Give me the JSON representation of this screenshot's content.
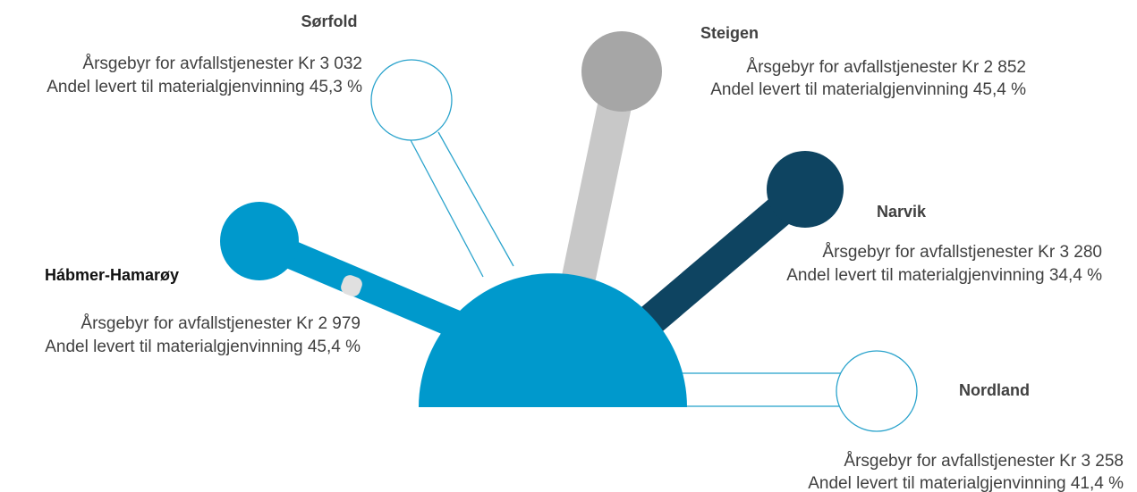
{
  "items": [
    {
      "name": "Sørfold",
      "fee": "Årsgebyr for avfallstjenester Kr 3 032",
      "share": "Andel levert til materialgjenvinning 45,3 %"
    },
    {
      "name": "Steigen",
      "fee": "Årsgebyr for avfallstjenester Kr 2 852",
      "share": "Andel levert til materialgjenvinning 45,4 %"
    },
    {
      "name": "Narvik",
      "fee": "Årsgebyr for avfallstjenester Kr 3 280",
      "share": "Andel levert til materialgjenvinning 34,4 %"
    },
    {
      "name": "Hábmer-Hamarøy",
      "fee": "Årsgebyr for avfallstjenester Kr 2 979",
      "share": "Andel levert til materialgjenvinning 45,4 %"
    },
    {
      "name": "Nordland",
      "fee": "Årsgebyr for avfallstjenester Kr 3 258",
      "share": "Andel levert til materialgjenvinning 41,4 %"
    }
  ]
}
